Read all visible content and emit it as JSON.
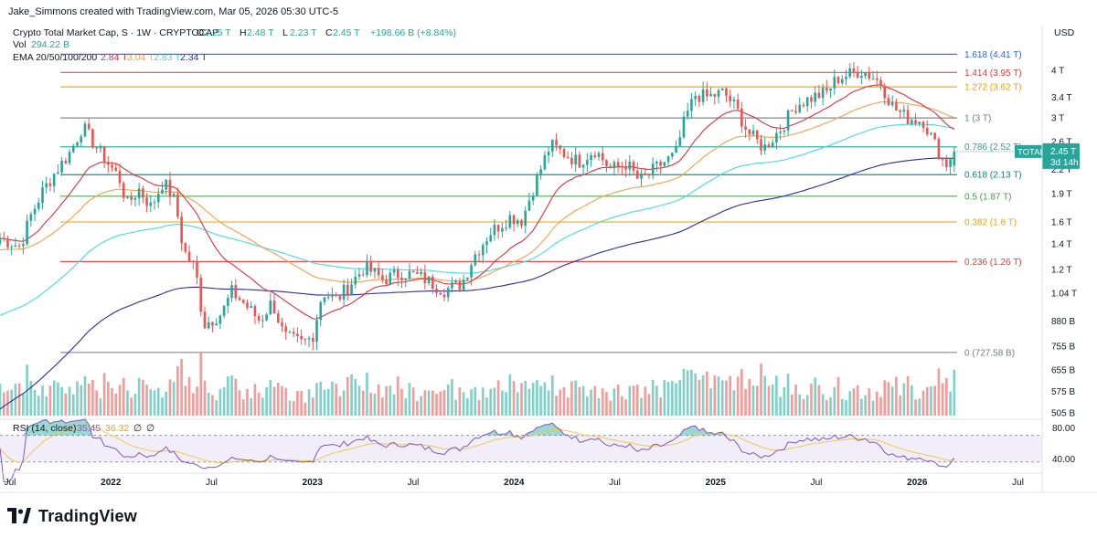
{
  "header": {
    "credit": "Jake_Simmons created with TradingView.com, Mar 05, 2026 05:30 UTC-5",
    "symbol": "Crypto Total Market Cap, S · 1W · CRYPTOCAP",
    "ohlc": [
      {
        "k": "O",
        "v": "2.25 T"
      },
      {
        "k": "H",
        "v": "2.48 T"
      },
      {
        "k": "L",
        "v": "2.23 T"
      },
      {
        "k": "C",
        "v": "2.45 T"
      }
    ],
    "change": "+198.66 B (+8.84%)",
    "vol_label": "Vol",
    "vol_value": "294.22 B",
    "ema_label": "EMA 20/50/100/200",
    "ema_values": [
      {
        "v": "2.84 T",
        "color": "#e0303a"
      },
      {
        "v": "3.04 T",
        "color": "#f5a04a"
      },
      {
        "v": "2.83 T",
        "color": "#45d9e6"
      },
      {
        "v": "2.34 T",
        "color": "#2a2ca0"
      }
    ],
    "currency": "USD"
  },
  "rsi": {
    "label": "RSI (14, close)",
    "value": "35.45",
    "ma_value": "36.32",
    "extra": [
      "∅",
      "∅"
    ],
    "ticks": [
      "80.00",
      "40.00"
    ]
  },
  "price_tag": {
    "name": "TOTAL",
    "value": "2.45 T",
    "countdown": "3d 14h"
  },
  "footer": {
    "brand": "TradingView"
  },
  "colors": {
    "up": "#26a69a",
    "down": "#ef5350",
    "vol_up": "#7fd0c7",
    "vol_down": "#f49a98",
    "ema20": "#e0303a",
    "ema50": "#f5a04a",
    "ema100": "#45d9e6",
    "ema200": "#2a2ca0",
    "rsi": "#7e57c2",
    "rsi_ma": "#f2c94c"
  },
  "chart_data": {
    "type": "candlestick",
    "title": "Crypto Total Market Cap (TOTAL), weekly",
    "y_scale": "log",
    "y_range_trillions": [
      0.505,
      4.8
    ],
    "y_ticks": [
      {
        "v": 4.0,
        "label": "4 T"
      },
      {
        "v": 3.4,
        "label": "3.4 T"
      },
      {
        "v": 3.0,
        "label": "3 T"
      },
      {
        "v": 2.6,
        "label": "2.6 T"
      },
      {
        "v": 2.2,
        "label": "2.2 T"
      },
      {
        "v": 1.9,
        "label": "1.9 T"
      },
      {
        "v": 1.6,
        "label": "1.6 T"
      },
      {
        "v": 1.4,
        "label": "1.4 T"
      },
      {
        "v": 1.2,
        "label": "1.2 T"
      },
      {
        "v": 1.04,
        "label": "1.04 T"
      },
      {
        "v": 0.88,
        "label": "880 B"
      },
      {
        "v": 0.755,
        "label": "755 B"
      },
      {
        "v": 0.655,
        "label": "655 B"
      },
      {
        "v": 0.575,
        "label": "575 B"
      },
      {
        "v": 0.505,
        "label": "505 B"
      }
    ],
    "x_range_years": [
      2021.45,
      2026.62
    ],
    "x_ticks": [
      {
        "t": 2021.5,
        "label": "Jul",
        "bold": false
      },
      {
        "t": 2022.0,
        "label": "2022",
        "bold": true
      },
      {
        "t": 2022.5,
        "label": "Jul",
        "bold": false
      },
      {
        "t": 2023.0,
        "label": "2023",
        "bold": true
      },
      {
        "t": 2023.5,
        "label": "Jul",
        "bold": false
      },
      {
        "t": 2024.0,
        "label": "2024",
        "bold": true
      },
      {
        "t": 2024.5,
        "label": "Jul",
        "bold": false
      },
      {
        "t": 2025.0,
        "label": "2025",
        "bold": true
      },
      {
        "t": 2025.5,
        "label": "Jul",
        "bold": false
      },
      {
        "t": 2026.0,
        "label": "2026",
        "bold": true
      },
      {
        "t": 2026.5,
        "label": "Jul",
        "bold": false
      }
    ],
    "fibonacci": [
      {
        "ratio": "1.618",
        "price": 4.41,
        "label": "1.618 (4.41 T)",
        "color": "#2962ff"
      },
      {
        "ratio": "1.414",
        "price": 3.95,
        "label": "1.414 (3.95 T)",
        "color": "#e53935"
      },
      {
        "ratio": "1.272",
        "price": 3.62,
        "label": "1.272 (3.62 T)",
        "color": "#f59f00"
      },
      {
        "ratio": "1",
        "price": 3.0,
        "label": "1 (3 T)",
        "color": "#787b86"
      },
      {
        "ratio": "0.786",
        "price": 2.52,
        "label": "0.786 (2.52 T)",
        "color": "#26a69a"
      },
      {
        "ratio": "0.618",
        "price": 2.13,
        "label": "0.618 (2.13 T)",
        "color": "#00897b"
      },
      {
        "ratio": "0.5",
        "price": 1.87,
        "label": "0.5 (1.87 T)",
        "color": "#43a047"
      },
      {
        "ratio": "0.382",
        "price": 1.6,
        "label": "0.382 (1.6 T)",
        "color": "#f59f00"
      },
      {
        "ratio": "0.236",
        "price": 1.26,
        "label": "0.236 (1.26 T)",
        "color": "#e53935"
      },
      {
        "ratio": "0",
        "price": 0.72758,
        "label": "0 (727.58 B)",
        "color": "#787b86"
      }
    ],
    "fib_start_year": 2021.75,
    "anchors_close_trillions": [
      [
        2021.45,
        1.45
      ],
      [
        2021.55,
        1.38
      ],
      [
        2021.6,
        1.65
      ],
      [
        2021.66,
        1.92
      ],
      [
        2021.72,
        2.15
      ],
      [
        2021.8,
        2.45
      ],
      [
        2021.86,
        2.85
      ],
      [
        2021.92,
        2.55
      ],
      [
        2021.98,
        2.3
      ],
      [
        2022.04,
        2.1
      ],
      [
        2022.08,
        1.78
      ],
      [
        2022.14,
        1.95
      ],
      [
        2022.2,
        1.75
      ],
      [
        2022.26,
        2.05
      ],
      [
        2022.32,
        1.8
      ],
      [
        2022.36,
        1.35
      ],
      [
        2022.42,
        1.2
      ],
      [
        2022.46,
        0.86
      ],
      [
        2022.55,
        0.92
      ],
      [
        2022.6,
        1.05
      ],
      [
        2022.66,
        0.98
      ],
      [
        2022.74,
        0.88
      ],
      [
        2022.8,
        0.99
      ],
      [
        2022.86,
        0.8
      ],
      [
        2022.95,
        0.77
      ],
      [
        2023.0,
        0.8
      ],
      [
        2023.05,
        1.05
      ],
      [
        2023.12,
        1.0
      ],
      [
        2023.2,
        1.12
      ],
      [
        2023.26,
        1.22
      ],
      [
        2023.35,
        1.13
      ],
      [
        2023.45,
        1.18
      ],
      [
        2023.55,
        1.14
      ],
      [
        2023.65,
        1.06
      ],
      [
        2023.74,
        1.1
      ],
      [
        2023.8,
        1.3
      ],
      [
        2023.88,
        1.5
      ],
      [
        2023.98,
        1.65
      ],
      [
        2024.04,
        1.62
      ],
      [
        2024.1,
        2.0
      ],
      [
        2024.18,
        2.55
      ],
      [
        2024.26,
        2.4
      ],
      [
        2024.32,
        2.3
      ],
      [
        2024.4,
        2.48
      ],
      [
        2024.48,
        2.2
      ],
      [
        2024.56,
        2.28
      ],
      [
        2024.62,
        2.05
      ],
      [
        2024.72,
        2.25
      ],
      [
        2024.8,
        2.4
      ],
      [
        2024.85,
        3.0
      ],
      [
        2024.9,
        3.45
      ],
      [
        2024.96,
        3.4
      ],
      [
        2025.04,
        3.5
      ],
      [
        2025.1,
        3.2
      ],
      [
        2025.16,
        2.75
      ],
      [
        2025.24,
        2.5
      ],
      [
        2025.32,
        2.8
      ],
      [
        2025.4,
        3.25
      ],
      [
        2025.48,
        3.4
      ],
      [
        2025.55,
        3.5
      ],
      [
        2025.6,
        3.8
      ],
      [
        2025.66,
        3.9
      ],
      [
        2025.72,
        4.0
      ],
      [
        2025.78,
        3.85
      ],
      [
        2025.82,
        3.7
      ],
      [
        2025.88,
        3.2
      ],
      [
        2025.95,
        3.0
      ],
      [
        2026.03,
        2.95
      ],
      [
        2026.09,
        2.55
      ],
      [
        2026.14,
        2.25
      ],
      [
        2026.18,
        2.45
      ]
    ],
    "last": {
      "open": 2.25,
      "high": 2.48,
      "low": 2.23,
      "close": 2.45
    },
    "ema": {
      "ema20_last": 2.84,
      "ema50_last": 3.04,
      "ema100_last": 2.83,
      "ema200_last": 2.34
    },
    "volume_last_billions": 294.22,
    "rsi_last": 35.45,
    "rsi_ma_last": 36.32,
    "rsi_band": [
      30,
      70
    ]
  }
}
